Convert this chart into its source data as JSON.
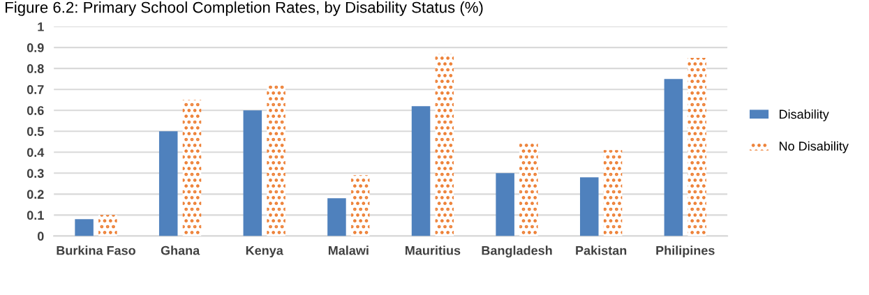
{
  "chart_data": {
    "type": "bar",
    "title": "Figure 6.2: Primary School Completion Rates, by Disability Status (%)",
    "categories": [
      "Burkina Faso",
      "Ghana",
      "Kenya",
      "Malawi",
      "Mauritius",
      "Bangladesh",
      "Pakistan",
      "Philipines"
    ],
    "series": [
      {
        "name": "Disability",
        "color": "#4f81bd",
        "values": [
          0.08,
          0.5,
          0.6,
          0.18,
          0.62,
          0.3,
          0.28,
          0.75
        ]
      },
      {
        "name": "No Disability",
        "color": "#ed7d31",
        "values": [
          0.1,
          0.65,
          0.73,
          0.29,
          0.87,
          0.45,
          0.41,
          0.85
        ]
      }
    ],
    "ylim": [
      0,
      1
    ],
    "yticks": [
      0,
      0.1,
      0.2,
      0.3,
      0.4,
      0.5,
      0.6,
      0.7,
      0.8,
      0.9,
      1
    ],
    "grid": "y",
    "legend": "right"
  }
}
